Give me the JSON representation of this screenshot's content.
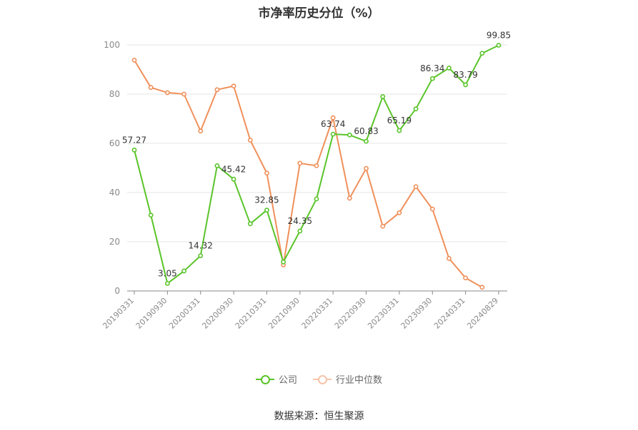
{
  "chart_data": {
    "type": "line",
    "title": "市净率历史分位（%）",
    "xlabel": "",
    "ylabel": "",
    "ylim": [
      0,
      100
    ],
    "yticks": [
      0,
      20,
      40,
      60,
      80,
      100
    ],
    "x": [
      "20190331",
      "20190630",
      "20190930",
      "20191231",
      "20200331",
      "20200630",
      "20200930",
      "20201231",
      "20210331",
      "20210630",
      "20210930",
      "20211231",
      "20220331",
      "20220630",
      "20220930",
      "20221231",
      "20230331",
      "20230630",
      "20230930",
      "20231231",
      "20240331",
      "20240630",
      "20240829"
    ],
    "xtick_labels": [
      "20190331",
      "20190930",
      "20200331",
      "20200930",
      "20210331",
      "20210930",
      "20220331",
      "20220930",
      "20230331",
      "20230930",
      "20240331",
      "20240829"
    ],
    "grid": true,
    "legend_position": "bottom-center",
    "series": [
      {
        "name": "公司",
        "color": "#5ac42a",
        "values": [
          57.27,
          30.8,
          3.05,
          8.1,
          14.32,
          50.9,
          45.42,
          27.3,
          32.85,
          11.8,
          24.35,
          37.4,
          63.74,
          63.4,
          60.83,
          79.0,
          65.19,
          74.0,
          86.34,
          90.6,
          83.79,
          96.6,
          99.85
        ],
        "labels": {
          "0": "57.27",
          "2": "3.05",
          "4": "14.32",
          "6": "45.42",
          "8": "32.85",
          "10": "24.35",
          "12": "63.74",
          "14": "60.83",
          "16": "65.19",
          "18": "86.34",
          "20": "83.79",
          "22": "99.85"
        }
      },
      {
        "name": "行业中位数",
        "color": "#f0905a",
        "values": [
          93.8,
          82.7,
          80.6,
          80.0,
          65.0,
          81.8,
          83.3,
          61.3,
          47.9,
          10.6,
          51.9,
          50.9,
          70.4,
          37.7,
          49.8,
          26.3,
          31.8,
          42.4,
          33.3,
          13.2,
          5.3,
          1.5,
          null
        ]
      }
    ]
  },
  "source": "数据来源：恒生聚源"
}
